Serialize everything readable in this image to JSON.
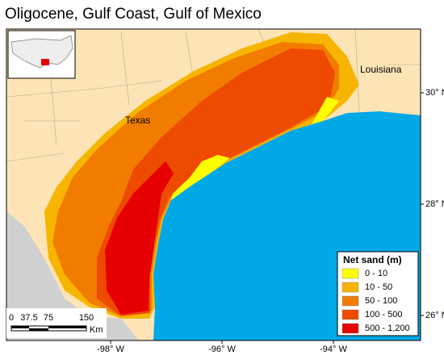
{
  "title": "Oligocene, Gulf Coast, Gulf of Mexico",
  "place_labels": [
    "Texas",
    "Louisiana"
  ],
  "latitude_labels": [
    "30° N",
    "28° N",
    "26° N"
  ],
  "longitude_labels": [
    "-98° W",
    "-96° W",
    "-94° W"
  ],
  "legend": {
    "title": "Net sand (m)",
    "items": [
      {
        "label": "0 - 10",
        "color": "#ffff00"
      },
      {
        "label": "10 - 50",
        "color": "#f7b500"
      },
      {
        "label": "50 - 100",
        "color": "#f27c00"
      },
      {
        "label": "100 - 500",
        "color": "#ee4a00"
      },
      {
        "label": "500 - 1,200",
        "color": "#e60000"
      }
    ]
  },
  "scale_bar": {
    "labels": [
      "0",
      "37.5",
      "75",
      "150"
    ],
    "unit": "Km"
  }
}
